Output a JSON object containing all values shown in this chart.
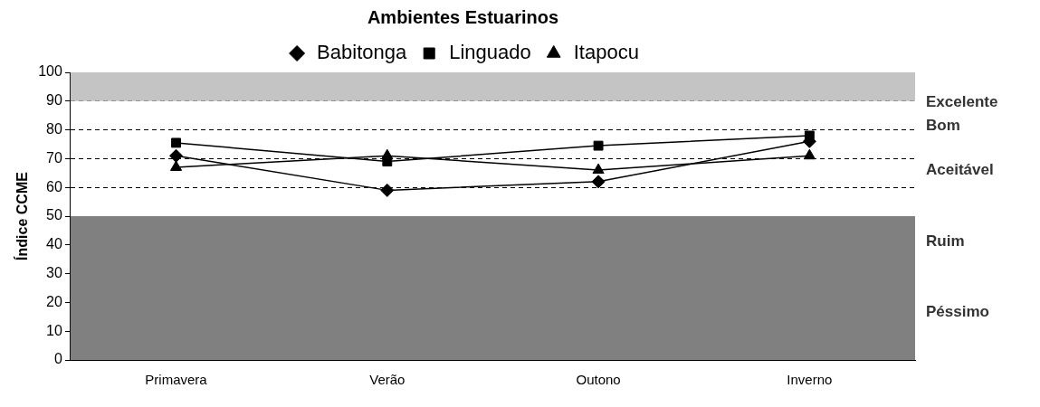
{
  "chart_data": {
    "type": "line",
    "title": "Ambientes Estuarinos",
    "ylabel": "Índice CCME",
    "categories": [
      "Primavera",
      "Verão",
      "Outono",
      "Inverno"
    ],
    "series": [
      {
        "name": "Babitonga",
        "color": "#000000",
        "marker": "diamond",
        "values": [
          71,
          59,
          62,
          76
        ]
      },
      {
        "name": "Linguado",
        "color": "#000000",
        "marker": "square",
        "values": [
          75.5,
          69,
          74.5,
          78
        ]
      },
      {
        "name": "Itapocu",
        "color": "#000000",
        "marker": "triangle",
        "values": [
          67,
          71,
          66,
          71
        ]
      }
    ],
    "ylim": [
      0,
      100
    ],
    "yticks": [
      0,
      10,
      20,
      30,
      40,
      50,
      60,
      70,
      80,
      90,
      100
    ],
    "grid": "y",
    "line_style": "solid",
    "legend": "top",
    "bands": [
      {
        "axis": "y",
        "from": 90,
        "to": 100,
        "color": "#c4c4c4"
      },
      {
        "axis": "y",
        "from": 0,
        "to": 50,
        "color": "#808080"
      }
    ],
    "annotations": [
      "Excelente",
      "Bom",
      "Aceitável",
      "Ruim",
      "Péssimo"
    ]
  }
}
